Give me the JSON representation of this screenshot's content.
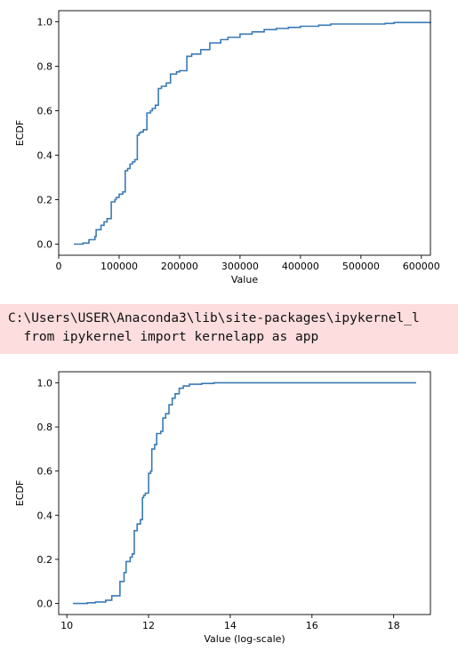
{
  "stderr": {
    "line1": "C:\\Users\\USER\\Anaconda3\\lib\\site-packages\\ipykernel_l",
    "line2": "  from ipykernel import kernelapp as app"
  },
  "chart_data": [
    {
      "type": "line",
      "drawstyle": "steps",
      "xlabel": "Value",
      "ylabel": "ECDF",
      "xlim": [
        0,
        615000
      ],
      "ylim": [
        -0.05,
        1.05
      ],
      "xticks": [
        0,
        100000,
        200000,
        300000,
        400000,
        500000,
        600000
      ],
      "xtick_labels": [
        "0",
        "100000",
        "200000",
        "300000",
        "400000",
        "500000",
        "600000"
      ],
      "yticks": [
        0.0,
        0.2,
        0.4,
        0.6,
        0.8,
        1.0
      ],
      "ytick_labels": [
        "0.0",
        "0.2",
        "0.4",
        "0.6",
        "0.8",
        "1.0"
      ],
      "grid": false,
      "color": "#3a7ab5",
      "series": [
        {
          "x": [
            25000,
            40000,
            50000,
            60000,
            62000,
            70000,
            75000,
            80000,
            87000,
            93000,
            95000,
            100000,
            106000,
            110000,
            114000,
            118000,
            122000,
            126000,
            130000,
            133000,
            136000,
            140000,
            146000,
            152000,
            155000,
            160000,
            165000,
            170000,
            178000,
            185000,
            195000,
            200000,
            212000,
            220000,
            235000,
            250000,
            268000,
            280000,
            300000,
            320000,
            340000,
            360000,
            380000,
            400000,
            430000,
            450000,
            540000,
            555000,
            615000
          ],
          "y": [
            0.0,
            0.005,
            0.02,
            0.035,
            0.065,
            0.085,
            0.1,
            0.115,
            0.19,
            0.2,
            0.21,
            0.225,
            0.235,
            0.33,
            0.34,
            0.36,
            0.37,
            0.38,
            0.49,
            0.5,
            0.505,
            0.515,
            0.59,
            0.6,
            0.61,
            0.625,
            0.7,
            0.71,
            0.725,
            0.765,
            0.775,
            0.78,
            0.845,
            0.855,
            0.875,
            0.905,
            0.92,
            0.93,
            0.945,
            0.955,
            0.965,
            0.97,
            0.975,
            0.98,
            0.985,
            0.99,
            0.993,
            0.997,
            1.0
          ]
        }
      ]
    },
    {
      "type": "line",
      "drawstyle": "steps",
      "xlabel": "Value (log-scale)",
      "ylabel": "ECDF",
      "xlim": [
        9.8,
        18.9
      ],
      "ylim": [
        -0.05,
        1.05
      ],
      "xticks": [
        10,
        12,
        14,
        16,
        18
      ],
      "xtick_labels": [
        "10",
        "12",
        "14",
        "16",
        "18"
      ],
      "yticks": [
        0.0,
        0.2,
        0.4,
        0.6,
        0.8,
        1.0
      ],
      "ytick_labels": [
        "0.0",
        "0.2",
        "0.4",
        "0.6",
        "0.8",
        "1.0"
      ],
      "grid": false,
      "color": "#3a7ab5",
      "series": [
        {
          "x": [
            10.15,
            10.5,
            10.7,
            10.95,
            11.1,
            11.3,
            11.4,
            11.45,
            11.55,
            11.6,
            11.65,
            11.72,
            11.8,
            11.85,
            11.88,
            11.92,
            12.0,
            12.05,
            12.08,
            12.15,
            12.2,
            12.3,
            12.35,
            12.42,
            12.5,
            12.58,
            12.65,
            12.75,
            12.85,
            13.0,
            13.3,
            13.6,
            18.55
          ],
          "y": [
            0.0,
            0.003,
            0.007,
            0.015,
            0.035,
            0.1,
            0.14,
            0.19,
            0.21,
            0.225,
            0.33,
            0.36,
            0.38,
            0.48,
            0.49,
            0.5,
            0.59,
            0.6,
            0.7,
            0.72,
            0.77,
            0.78,
            0.84,
            0.86,
            0.9,
            0.93,
            0.95,
            0.975,
            0.985,
            0.993,
            0.997,
            1.0,
            1.0
          ]
        }
      ]
    }
  ]
}
